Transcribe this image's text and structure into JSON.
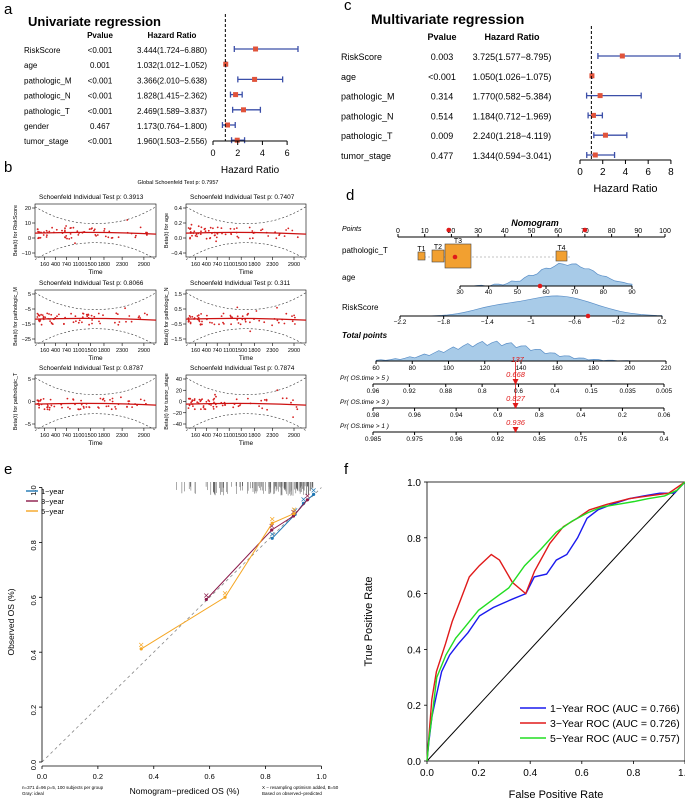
{
  "panel_labels": {
    "a": "a",
    "b": "b",
    "c": "c",
    "d": "d",
    "e": "e",
    "f": "f"
  },
  "colors": {
    "forest_line": "#3b4fa8",
    "forest_point": "#e0533b",
    "schoenfeld_points": "#d62020",
    "schoenfeld_line": "#cc1111",
    "nomogram_fill": "#a8cbe8",
    "nomogram_stroke": "#5b8fc7",
    "nomogram_red": "#e01a1a",
    "box_fill": "#f2a030",
    "calib_1yr": "#1f77b4",
    "calib_3yr": "#8b1a4a",
    "calib_5yr": "#f5a623",
    "roc_1yr": "#1a1aee",
    "roc_3yr": "#e01a1a",
    "roc_5yr": "#22dd22"
  },
  "chart_data": [
    {
      "id": "a",
      "type": "forest",
      "title": "Univariate regression",
      "col_pvalue": "Pvalue",
      "col_hr": "Hazard Ratio",
      "xlabel": "Hazard Ratio",
      "xticks": [
        "0",
        "2",
        "4",
        "6"
      ],
      "xlim": [
        0,
        6.8
      ],
      "ref_line": 1,
      "rows": [
        {
          "name": "RiskScore",
          "p": "<0.001",
          "hr_text": "3.444(1.724−6.880)",
          "hr": 3.444,
          "lo": 1.724,
          "hi": 6.88
        },
        {
          "name": "age",
          "p": "0.001",
          "hr_text": "1.032(1.012−1.052)",
          "hr": 1.032,
          "lo": 1.012,
          "hi": 1.052
        },
        {
          "name": "pathologic_M",
          "p": "<0.001",
          "hr_text": "3.366(2.010−5.638)",
          "hr": 3.366,
          "lo": 2.01,
          "hi": 5.638
        },
        {
          "name": "pathologic_N",
          "p": "<0.001",
          "hr_text": "1.828(1.415−2.362)",
          "hr": 1.828,
          "lo": 1.415,
          "hi": 2.362
        },
        {
          "name": "pathologic_T",
          "p": "<0.001",
          "hr_text": "2.469(1.589−3.837)",
          "hr": 2.469,
          "lo": 1.589,
          "hi": 3.837
        },
        {
          "name": "gender",
          "p": "0.467",
          "hr_text": "1.173(0.764−1.800)",
          "hr": 1.173,
          "lo": 0.764,
          "hi": 1.8
        },
        {
          "name": "tumor_stage",
          "p": "<0.001",
          "hr_text": "1.960(1.503−2.556)",
          "hr": 1.96,
          "lo": 1.503,
          "hi": 2.556
        }
      ]
    },
    {
      "id": "c",
      "type": "forest",
      "title": "Multivariate regression",
      "col_pvalue": "Pvalue",
      "col_hr": "Hazard Ratio",
      "xlabel": "Hazard Ratio",
      "xticks": [
        "0",
        "2",
        "4",
        "6",
        "8"
      ],
      "xlim": [
        0,
        8.8
      ],
      "ref_line": 1,
      "rows": [
        {
          "name": "RiskScore",
          "p": "0.003",
          "hr_text": "3.725(1.577−8.795)",
          "hr": 3.725,
          "lo": 1.577,
          "hi": 8.795
        },
        {
          "name": "age",
          "p": "<0.001",
          "hr_text": "1.050(1.026−1.075)",
          "hr": 1.05,
          "lo": 1.026,
          "hi": 1.075
        },
        {
          "name": "pathologic_M",
          "p": "0.314",
          "hr_text": "1.770(0.582−5.384)",
          "hr": 1.77,
          "lo": 0.582,
          "hi": 5.384
        },
        {
          "name": "pathologic_N",
          "p": "0.514",
          "hr_text": "1.184(0.712−1.969)",
          "hr": 1.184,
          "lo": 0.712,
          "hi": 1.969
        },
        {
          "name": "pathologic_T",
          "p": "0.009",
          "hr_text": "2.240(1.218−4.119)",
          "hr": 2.24,
          "lo": 1.218,
          "hi": 4.119
        },
        {
          "name": "tumor_stage",
          "p": "0.477",
          "hr_text": "1.344(0.594−3.041)",
          "hr": 1.344,
          "lo": 0.594,
          "hi": 3.041
        }
      ]
    },
    {
      "id": "b",
      "type": "scatter",
      "global_title": "Global Schoenfeld Test p: 0.7957",
      "xlabel": "Time",
      "xticks": [
        "160",
        "400",
        "740",
        "1100",
        "1500",
        "1800",
        "2300",
        "2900"
      ],
      "panels": [
        {
          "title": "Schoenfeld Individual Test p: 0.3913",
          "ylabel": "Beta(t) for RiskScore",
          "yticks": [
            "−10",
            "0",
            "10",
            "20"
          ],
          "ylim": [
            -15,
            22
          ]
        },
        {
          "title": "Schoenfeld Individual Test p: 0.7407",
          "ylabel": "Beta(t) for age",
          "yticks": [
            "−0.4",
            "0.0",
            "0.2",
            "0.4"
          ],
          "ylim": [
            -0.5,
            0.5
          ]
        },
        {
          "title": "Schoenfeld Individual Test p: 0.8066",
          "ylabel": "Beta(t) for pathologic_M",
          "yticks": [
            "−25",
            "−15",
            "−5",
            "5"
          ],
          "ylim": [
            -28,
            8
          ]
        },
        {
          "title": "Schoenfeld Individual Test p: 0.311",
          "ylabel": "Beta(t) for pathologic_N",
          "yticks": [
            "−1.5",
            "−0.5",
            "0.5",
            "1.5"
          ],
          "ylim": [
            -1.8,
            1.8
          ]
        },
        {
          "title": "Schoenfeld Individual Test p: 0.8787",
          "ylabel": "Beta(t) for pathologic_T",
          "yticks": [
            "−5",
            "0",
            "5"
          ],
          "ylim": [
            -7,
            7
          ]
        },
        {
          "title": "Schoenfeld Individual Test p: 0.7874",
          "ylabel": "Beta(t) for tumor_stage",
          "yticks": [
            "−40",
            "−20",
            "0",
            "20",
            "40"
          ],
          "ylim": [
            -45,
            45
          ]
        }
      ]
    },
    {
      "id": "d",
      "type": "nomogram",
      "title": "Nomogram",
      "points_label": "Points",
      "points_ticks": [
        "0",
        "10",
        "20",
        "30",
        "40",
        "50",
        "60",
        "70",
        "80",
        "90",
        "100"
      ],
      "t_label": "pathologic_T",
      "t_categories": [
        "T1",
        "T2",
        "T3",
        "T4"
      ],
      "age_label": "age",
      "age_ticks": [
        "30",
        "40",
        "50",
        "60",
        "70",
        "80",
        "90"
      ],
      "risk_label": "RiskScore",
      "risk_ticks": [
        "−2.2",
        "−1.8",
        "−1.4",
        "−1",
        "−0.6",
        "−0.2",
        "0.2"
      ],
      "total_label": "Total points",
      "total_ticks": [
        "60",
        "80",
        "100",
        "120",
        "140",
        "160",
        "180",
        "200",
        "220"
      ],
      "total_value": "137",
      "prob_rows": [
        {
          "label": "Pr( OS.time > 5 )",
          "ticks": [
            "0.96",
            "0.92",
            "0.88",
            "0.8",
            "0.6",
            "0.4",
            "0.15",
            "0.035",
            "0.005"
          ],
          "value": "0.668"
        },
        {
          "label": "Pr( OS.time > 3 )",
          "ticks": [
            "0.98",
            "0.96",
            "0.94",
            "0.9",
            "0.8",
            "0.4",
            "0.2",
            "0.06"
          ],
          "value": "0.827"
        },
        {
          "label": "Pr( OS.time > 1 )",
          "ticks": [
            "0.985",
            "0.975",
            "0.96",
            "0.92",
            "0.85",
            "0.75",
            "0.6",
            "0.4"
          ],
          "value": "0.936"
        }
      ]
    },
    {
      "id": "e",
      "type": "line",
      "xlabel": "Nomogram−prediced OS (%)",
      "ylabel": "Observed OS (%)",
      "xticks": [
        "0.0",
        "0.2",
        "0.4",
        "0.6",
        "0.8",
        "1.0"
      ],
      "yticks": [
        "0.0",
        "0.2",
        "0.4",
        "0.6",
        "0.8",
        "1.0"
      ],
      "xlim": [
        0,
        1.02
      ],
      "ylim": [
        0,
        1.02
      ],
      "note_left_1": "n=371 d=96 p=5, 100 subjects per group",
      "note_left_2": "Gray: ideal",
      "note_right_1": "X − resampling optimism added, B=50",
      "note_right_2": "Based on observed−predicted",
      "series": [
        {
          "name": "1−year",
          "x": [
            0.824,
            0.906,
            0.936,
            0.972
          ],
          "y": [
            0.815,
            0.902,
            0.942,
            0.975
          ]
        },
        {
          "name": "3−year",
          "x": [
            0.588,
            0.822,
            0.9,
            0.95
          ],
          "y": [
            0.592,
            0.845,
            0.896,
            0.955
          ]
        },
        {
          "name": "5−year",
          "x": [
            0.355,
            0.655,
            0.824,
            0.902
          ],
          "y": [
            0.412,
            0.6,
            0.87,
            0.905
          ]
        }
      ]
    },
    {
      "id": "f",
      "type": "line",
      "xlabel": "False Positive Rate",
      "ylabel": "True Positive Rate",
      "xticks": [
        "0.0",
        "0.2",
        "0.4",
        "0.6",
        "0.8",
        "1.0"
      ],
      "yticks": [
        "0.0",
        "0.2",
        "0.4",
        "0.6",
        "0.8",
        "1.0"
      ],
      "xlim": [
        0,
        1
      ],
      "ylim": [
        0,
        1
      ],
      "series": [
        {
          "name": "1−Year ROC (AUC = 0.766)",
          "x": [
            0,
            0.01,
            0.02,
            0.04,
            0.06,
            0.09,
            0.12,
            0.16,
            0.2,
            0.26,
            0.33,
            0.38,
            0.42,
            0.46,
            0.5,
            0.54,
            0.58,
            0.62,
            0.66,
            0.72,
            0.78,
            0.84,
            0.9,
            0.96,
            1.0
          ],
          "y": [
            0,
            0.07,
            0.16,
            0.24,
            0.32,
            0.38,
            0.42,
            0.46,
            0.52,
            0.55,
            0.58,
            0.6,
            0.66,
            0.67,
            0.72,
            0.74,
            0.8,
            0.87,
            0.9,
            0.92,
            0.94,
            0.95,
            0.96,
            0.96,
            1.0
          ]
        },
        {
          "name": "3−Year ROC (AUC = 0.726)",
          "x": [
            0,
            0.01,
            0.02,
            0.04,
            0.07,
            0.1,
            0.13,
            0.16,
            0.2,
            0.25,
            0.28,
            0.33,
            0.38,
            0.42,
            0.48,
            0.53,
            0.58,
            0.63,
            0.7,
            0.78,
            0.86,
            0.94,
            1.0
          ],
          "y": [
            0,
            0.1,
            0.22,
            0.32,
            0.42,
            0.5,
            0.58,
            0.66,
            0.7,
            0.74,
            0.72,
            0.64,
            0.6,
            0.68,
            0.78,
            0.84,
            0.87,
            0.9,
            0.92,
            0.94,
            0.95,
            0.96,
            1.0
          ]
        },
        {
          "name": "5−Year ROC (AUC = 0.757)",
          "x": [
            0,
            0.01,
            0.02,
            0.04,
            0.07,
            0.11,
            0.15,
            0.2,
            0.26,
            0.32,
            0.38,
            0.44,
            0.5,
            0.56,
            0.62,
            0.68,
            0.74,
            0.8,
            0.86,
            0.92,
            0.97,
            1.0
          ],
          "y": [
            0,
            0.08,
            0.18,
            0.3,
            0.38,
            0.44,
            0.48,
            0.54,
            0.58,
            0.62,
            0.7,
            0.76,
            0.82,
            0.86,
            0.89,
            0.91,
            0.92,
            0.93,
            0.94,
            0.95,
            0.97,
            1.0
          ]
        }
      ]
    }
  ]
}
